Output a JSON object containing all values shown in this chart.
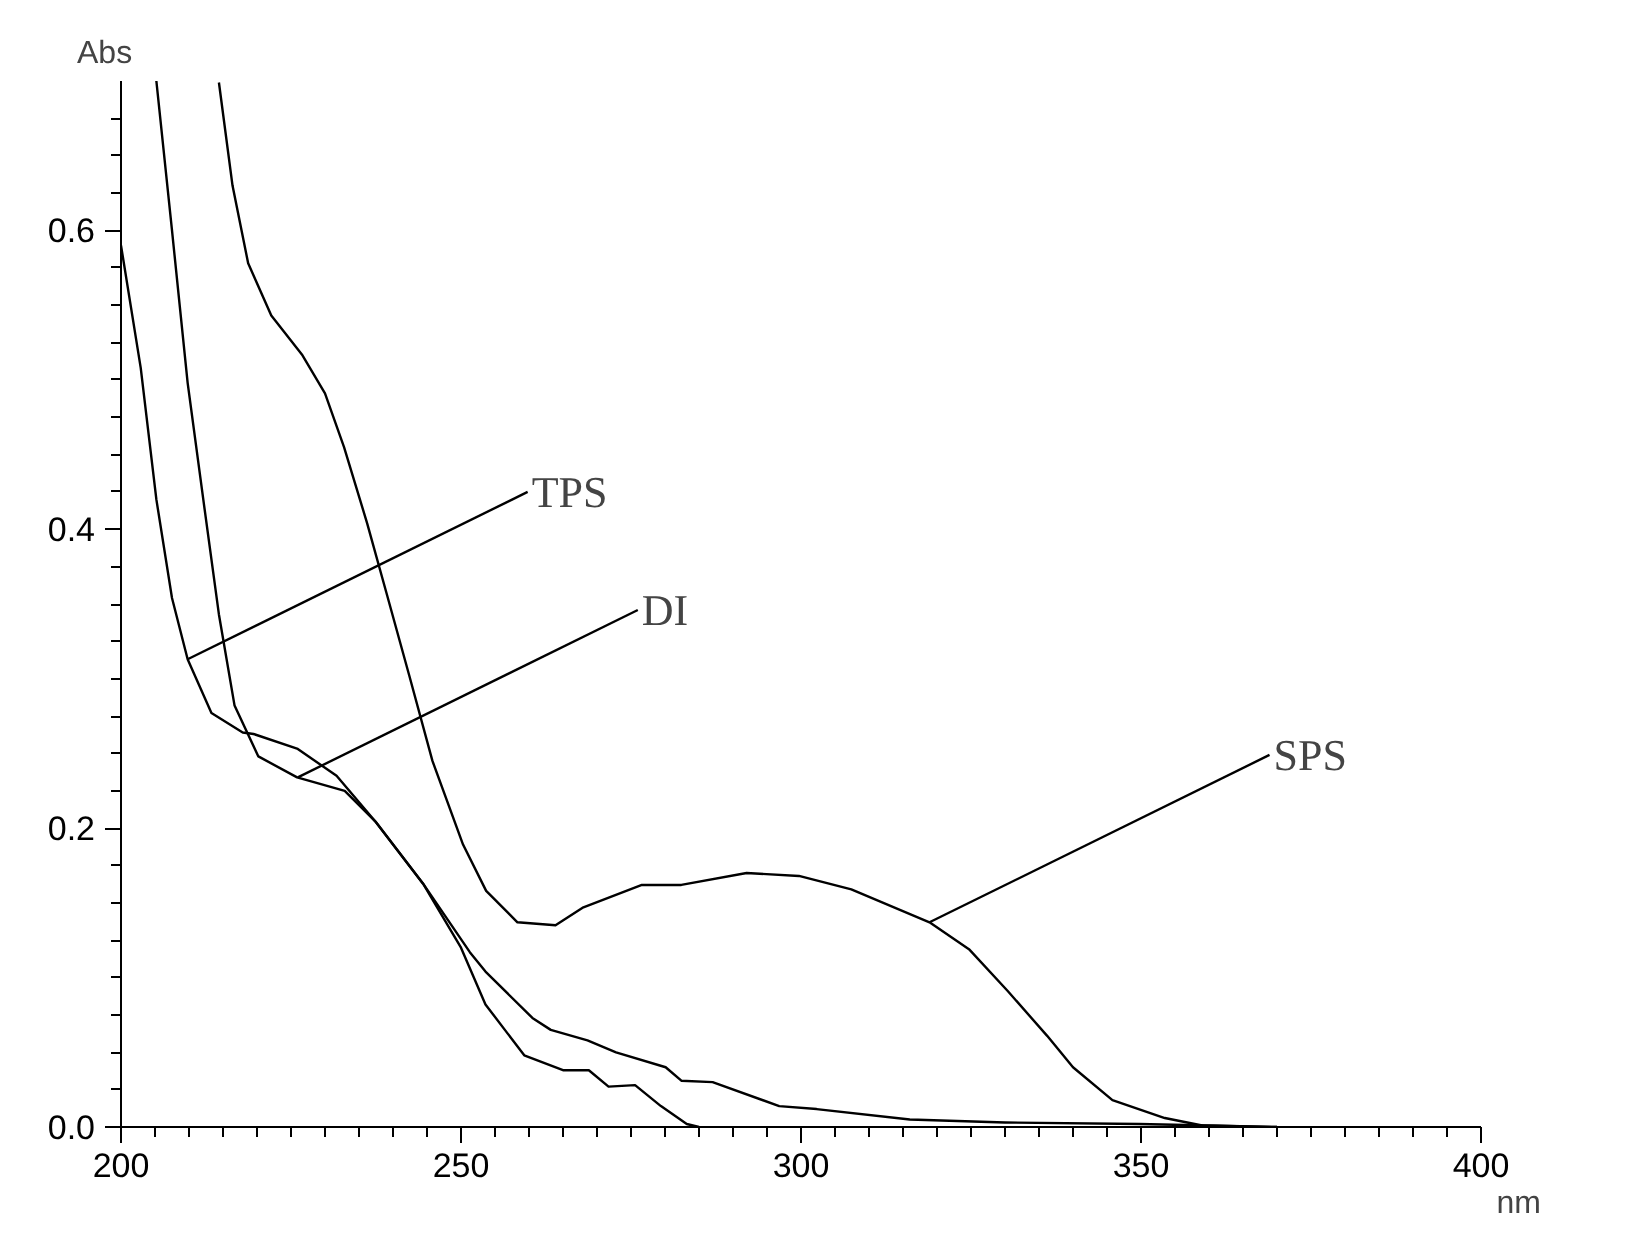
{
  "chart_data": {
    "type": "line",
    "xlabel": "nm",
    "ylabel": "Abs",
    "xlim": [
      200,
      400
    ],
    "ylim": [
      0,
      0.7
    ],
    "xticks": [
      200,
      250,
      300,
      350,
      400
    ],
    "yticks": [
      {
        "value": 0,
        "label": "0.0"
      },
      {
        "value": 0.2,
        "label": "0.2"
      },
      {
        "value": 0.4,
        "label": "0.4"
      },
      {
        "value": 0.6,
        "label": "0.6"
      }
    ],
    "grid": false,
    "marker": "none",
    "line_style": "solid",
    "series": [
      {
        "color": "#000000",
        "x": [
          200,
          202.9,
          205.2,
          207.5,
          209.8,
          213.3,
          217.9,
          219.5,
          226,
          231.7,
          237.5,
          244.4,
          251.3,
          253.6,
          260.5,
          263.2,
          268.6,
          272.8,
          280.1,
          282.4,
          287,
          296.8,
          302.3,
          316,
          330,
          349.7,
          360,
          370
        ],
        "values": [
          0.59,
          0.508,
          0.42,
          0.354,
          0.313,
          0.277,
          0.264,
          0.263,
          0.253,
          0.235,
          0.204,
          0.163,
          0.117,
          0.104,
          0.073,
          0.065,
          0.058,
          0.05,
          0.04,
          0.031,
          0.03,
          0.014,
          0.012,
          0.005,
          0.003,
          0.002,
          0.001,
          0
        ]
      },
      {
        "color": "#000000",
        "x": [
          205.2,
          207.5,
          209.8,
          212.1,
          214.4,
          216.7,
          220.2,
          225.9,
          232.9,
          237.5,
          244.4,
          250,
          253.6,
          259.3,
          265,
          268.8,
          271.7,
          275.6,
          279.4,
          283.2,
          285
        ],
        "values": [
          0.7,
          0.6,
          0.498,
          0.42,
          0.343,
          0.282,
          0.248,
          0.234,
          0.225,
          0.204,
          0.163,
          0.12,
          0.082,
          0.048,
          0.038,
          0.038,
          0.027,
          0.028,
          0.014,
          0.002,
          0
        ]
      },
      {
        "color": "#000000",
        "x": [
          214.4,
          216.4,
          218.7,
          222.1,
          226.6,
          230,
          232.8,
          236.2,
          239,
          242.4,
          245.8,
          250.3,
          253.7,
          258.3,
          263.9,
          268,
          276.6,
          282.4,
          292,
          299.7,
          307.4,
          318.9,
          324.7,
          330.4,
          336.2,
          340,
          345.8,
          353.5,
          359,
          370
        ],
        "values": [
          0.699,
          0.63,
          0.578,
          0.543,
          0.517,
          0.491,
          0.455,
          0.404,
          0.358,
          0.302,
          0.245,
          0.189,
          0.158,
          0.137,
          0.135,
          0.147,
          0.162,
          0.162,
          0.17,
          0.168,
          0.159,
          0.137,
          0.119,
          0.091,
          0.061,
          0.04,
          0.018,
          0.006,
          0.001,
          0
        ]
      }
    ],
    "annotations": [
      {
        "text": "TPS",
        "x": 209.8,
        "y": 0.313
      },
      {
        "text": "DI",
        "x": 226,
        "y": 0.234
      },
      {
        "text": "SPS",
        "x": 318.9,
        "y": 0.137
      }
    ]
  }
}
